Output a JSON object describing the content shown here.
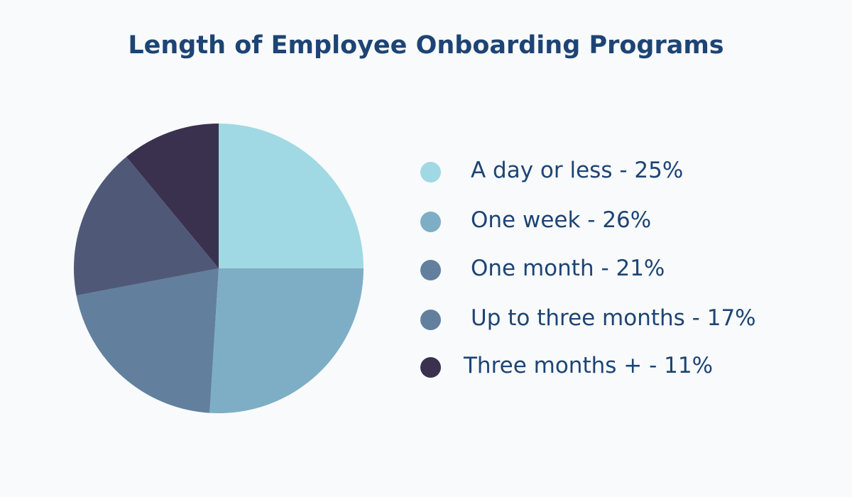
{
  "title": "Length of Employee Onboarding Programs",
  "chart_data": {
    "type": "pie",
    "title": "Length of Employee Onboarding Programs",
    "slices": [
      {
        "label": "A day or less - 25%",
        "category": "A day or less",
        "value": 25,
        "color": "#a0d9e3"
      },
      {
        "label": "One week - 26%",
        "category": "One week",
        "value": 26,
        "color": "#7eaec5"
      },
      {
        "label": "One month - 21%",
        "category": "One month",
        "value": 21,
        "color": "#62809e"
      },
      {
        "label": "Up to three months - 17%",
        "category": "Up to three months",
        "value": 17,
        "color": "#4f5977"
      },
      {
        "label": "Three months + - 11%",
        "category": "Three months +",
        "value": 11,
        "color": "#3a314f"
      }
    ],
    "legend_dot_colors": [
      "#a0d9e3",
      "#7eaec5",
      "#62809e",
      "#62809e",
      "#3a314f"
    ],
    "start_angle": "12 o'clock",
    "direction": "clockwise",
    "legend_position": "right"
  }
}
